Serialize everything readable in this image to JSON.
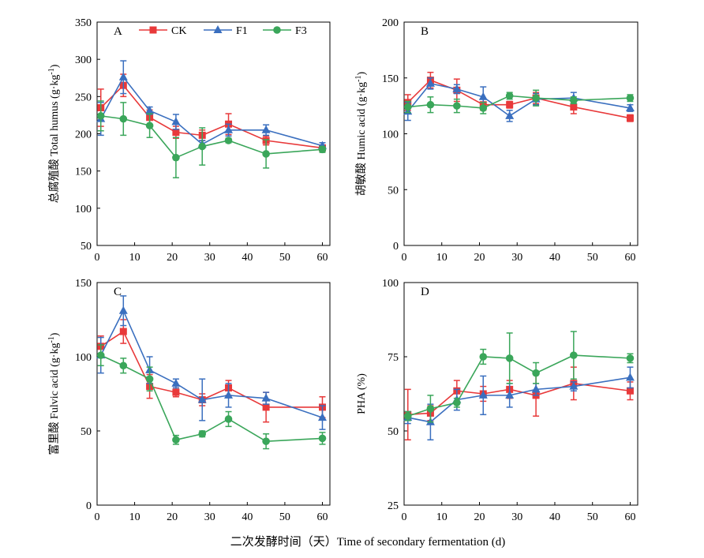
{
  "figure": {
    "xlabel": "二次发酵时间（天）Time of secondary fermentation (d)"
  },
  "legend": {
    "entries": [
      {
        "name": "CK",
        "color": "#e8393a",
        "marker": "square"
      },
      {
        "name": "F1",
        "color": "#3a6fbf",
        "marker": "triangle"
      },
      {
        "name": "F3",
        "color": "#3aa65a",
        "marker": "circle"
      }
    ]
  },
  "chart_data": [
    {
      "panel": "A",
      "type": "line",
      "ylabel": "总腐殖酸 Total humus (g·kg⁻¹)",
      "xlim": [
        0,
        62
      ],
      "ylim": [
        50,
        350
      ],
      "xticks": [
        0,
        10,
        20,
        30,
        40,
        50,
        60
      ],
      "yticks": [
        50,
        100,
        150,
        200,
        250,
        300,
        350
      ],
      "grid": false,
      "legend_position": "top",
      "series": [
        {
          "name": "CK",
          "x": [
            1,
            7,
            14,
            21,
            28,
            35,
            45,
            60
          ],
          "y": [
            235,
            265,
            222,
            202,
            198,
            213,
            191,
            181
          ],
          "err": [
            25,
            15,
            10,
            8,
            7,
            14,
            6,
            3
          ]
        },
        {
          "name": "F1",
          "x": [
            1,
            7,
            14,
            21,
            28,
            35,
            45,
            60
          ],
          "y": [
            220,
            276,
            231,
            216,
            186,
            205,
            205,
            184
          ],
          "err": [
            22,
            22,
            5,
            10,
            5,
            8,
            7,
            4
          ]
        },
        {
          "name": "F3",
          "x": [
            1,
            7,
            14,
            21,
            28,
            35,
            45,
            60
          ],
          "y": [
            224,
            220,
            211,
            168,
            183,
            191,
            173,
            179
          ],
          "err": [
            20,
            22,
            16,
            27,
            25,
            3,
            19,
            4
          ]
        }
      ]
    },
    {
      "panel": "B",
      "type": "line",
      "ylabel": "胡敏酸 Humic acid (g·kg⁻¹)",
      "xlim": [
        0,
        62
      ],
      "ylim": [
        0,
        200
      ],
      "xticks": [
        0,
        10,
        20,
        30,
        40,
        50,
        60
      ],
      "yticks": [
        0,
        50,
        100,
        150,
        200
      ],
      "grid": false,
      "series": [
        {
          "name": "CK",
          "x": [
            1,
            7,
            14,
            21,
            28,
            35,
            45,
            60
          ],
          "y": [
            128,
            148,
            139,
            126,
            126,
            132,
            124,
            114
          ],
          "err": [
            7,
            7,
            10,
            5,
            3,
            5,
            6,
            3
          ]
        },
        {
          "name": "F1",
          "x": [
            1,
            7,
            14,
            21,
            28,
            35,
            45,
            60
          ],
          "y": [
            120,
            145,
            140,
            133,
            116,
            131,
            132,
            123
          ],
          "err": [
            8,
            5,
            4,
            9,
            5,
            5,
            5,
            3
          ]
        },
        {
          "name": "F3",
          "x": [
            1,
            7,
            14,
            21,
            28,
            35,
            45,
            60
          ],
          "y": [
            124,
            126,
            125,
            123,
            134,
            132,
            130,
            132
          ],
          "err": [
            5,
            7,
            6,
            5,
            3,
            7,
            3,
            3
          ]
        }
      ]
    },
    {
      "panel": "C",
      "type": "line",
      "ylabel": "富里酸 Fulvic acid (g·kg⁻¹)",
      "xlim": [
        0,
        62
      ],
      "ylim": [
        0,
        150
      ],
      "xticks": [
        0,
        10,
        20,
        30,
        40,
        50,
        60
      ],
      "yticks": [
        0,
        50,
        100,
        150
      ],
      "grid": false,
      "series": [
        {
          "name": "CK",
          "x": [
            1,
            7,
            14,
            21,
            28,
            35,
            45,
            60
          ],
          "y": [
            107,
            117,
            80,
            76,
            71,
            79,
            66,
            66
          ],
          "err": [
            7,
            8,
            8,
            3,
            4,
            5,
            10,
            7
          ]
        },
        {
          "name": "F1",
          "x": [
            1,
            7,
            14,
            21,
            28,
            35,
            45,
            60
          ],
          "y": [
            101,
            131,
            91,
            82,
            71,
            74,
            72,
            59
          ],
          "err": [
            12,
            10,
            9,
            3,
            14,
            8,
            4,
            8
          ]
        },
        {
          "name": "F3",
          "x": [
            1,
            7,
            14,
            21,
            28,
            35,
            45,
            60
          ],
          "y": [
            101,
            94,
            85,
            44,
            48,
            58,
            43,
            45
          ],
          "err": [
            7,
            5,
            8,
            3,
            2,
            5,
            5,
            4
          ]
        }
      ]
    },
    {
      "panel": "D",
      "type": "line",
      "ylabel": "PHA (%)",
      "xlim": [
        0,
        62
      ],
      "ylim": [
        25,
        100
      ],
      "xticks": [
        0,
        10,
        20,
        30,
        40,
        50,
        60
      ],
      "yticks": [
        25,
        50,
        75,
        100
      ],
      "grid": false,
      "series": [
        {
          "name": "CK",
          "x": [
            1,
            7,
            14,
            21,
            28,
            35,
            45,
            60
          ],
          "y": [
            55.5,
            56.0,
            63.5,
            62.5,
            64.0,
            62.0,
            66.0,
            63.5
          ],
          "err": [
            8.5,
            2.5,
            3.5,
            2.5,
            3.0,
            7.0,
            5.5,
            3.0
          ]
        },
        {
          "name": "F1",
          "x": [
            1,
            7,
            14,
            21,
            28,
            35,
            45,
            60
          ],
          "y": [
            54.5,
            53.0,
            60.5,
            62.0,
            62.0,
            64.0,
            65.0,
            68.0
          ],
          "err": [
            2.0,
            6.0,
            3.5,
            6.5,
            4.0,
            2.0,
            1.5,
            3.5
          ]
        },
        {
          "name": "F3",
          "x": [
            1,
            7,
            14,
            21,
            28,
            35,
            45,
            60
          ],
          "y": [
            55.0,
            57.5,
            59.5,
            75.0,
            74.5,
            69.5,
            75.5,
            74.5
          ],
          "err": [
            1.5,
            4.5,
            1.5,
            2.5,
            8.5,
            3.5,
            8.0,
            1.5
          ]
        }
      ]
    }
  ]
}
